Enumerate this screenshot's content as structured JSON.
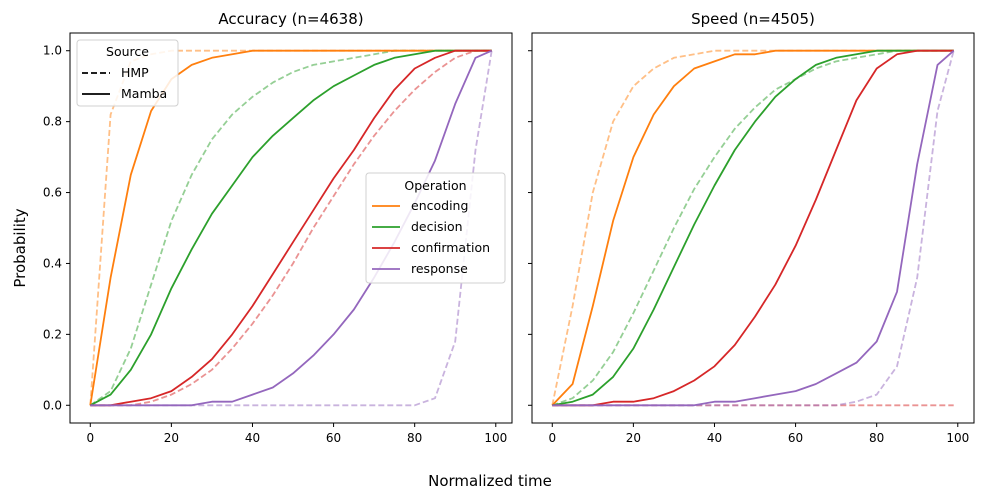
{
  "figure": {
    "xlabel": "Normalized time",
    "ylabel": "Probability"
  },
  "legends": {
    "source": {
      "title": "Source",
      "entries": [
        {
          "label": "HMP",
          "style": "dashed"
        },
        {
          "label": "Mamba",
          "style": "solid"
        }
      ]
    },
    "operation": {
      "title": "Operation",
      "entries": [
        {
          "label": "encoding",
          "color": "#ff7f0e"
        },
        {
          "label": "decision",
          "color": "#2ca02c"
        },
        {
          "label": "confirmation",
          "color": "#d62728"
        },
        {
          "label": "response",
          "color": "#9467bd"
        }
      ]
    }
  },
  "chart_data": [
    {
      "type": "line",
      "title": "Accuracy (n=4638)",
      "xlim": [
        -5,
        104
      ],
      "ylim": [
        -0.05,
        1.05
      ],
      "xticks": [
        0,
        20,
        40,
        60,
        80,
        100
      ],
      "yticks": [
        0.0,
        0.2,
        0.4,
        0.6,
        0.8,
        1.0
      ],
      "x": [
        0,
        5,
        10,
        15,
        20,
        25,
        30,
        35,
        40,
        45,
        50,
        55,
        60,
        65,
        70,
        75,
        80,
        85,
        90,
        95,
        99
      ],
      "series": [
        {
          "name": "encoding",
          "source": "Mamba",
          "color": "#ff7f0e",
          "y": [
            0,
            0.36,
            0.65,
            0.83,
            0.92,
            0.96,
            0.98,
            0.99,
            1.0,
            1.0,
            1.0,
            1.0,
            1.0,
            1.0,
            1.0,
            1.0,
            1.0,
            1.0,
            1.0,
            1.0,
            1.0
          ]
        },
        {
          "name": "decision",
          "source": "Mamba",
          "color": "#2ca02c",
          "y": [
            0,
            0.03,
            0.1,
            0.2,
            0.33,
            0.44,
            0.54,
            0.62,
            0.7,
            0.76,
            0.81,
            0.86,
            0.9,
            0.93,
            0.96,
            0.98,
            0.99,
            1.0,
            1.0,
            1.0,
            1.0
          ]
        },
        {
          "name": "confirmation",
          "source": "Mamba",
          "color": "#d62728",
          "y": [
            0,
            0.0,
            0.01,
            0.02,
            0.04,
            0.08,
            0.13,
            0.2,
            0.28,
            0.37,
            0.46,
            0.55,
            0.64,
            0.72,
            0.81,
            0.89,
            0.95,
            0.98,
            1.0,
            1.0,
            1.0
          ]
        },
        {
          "name": "response",
          "source": "Mamba",
          "color": "#9467bd",
          "y": [
            0,
            0.0,
            0.0,
            0.0,
            0.0,
            0.0,
            0.01,
            0.01,
            0.03,
            0.05,
            0.09,
            0.14,
            0.2,
            0.27,
            0.36,
            0.46,
            0.57,
            0.69,
            0.85,
            0.98,
            1.0
          ]
        },
        {
          "name": "encoding",
          "source": "HMP",
          "color": "#ff7f0e",
          "y": [
            0,
            0.82,
            0.97,
            0.99,
            1.0,
            1.0,
            1.0,
            1.0,
            1.0,
            1.0,
            1.0,
            1.0,
            1.0,
            1.0,
            1.0,
            1.0,
            1.0,
            1.0,
            1.0,
            1.0,
            1.0
          ]
        },
        {
          "name": "decision",
          "source": "HMP",
          "color": "#2ca02c",
          "y": [
            0,
            0.04,
            0.16,
            0.34,
            0.52,
            0.65,
            0.75,
            0.82,
            0.87,
            0.91,
            0.94,
            0.96,
            0.97,
            0.98,
            0.99,
            1.0,
            1.0,
            1.0,
            1.0,
            1.0,
            1.0
          ]
        },
        {
          "name": "confirmation",
          "source": "HMP",
          "color": "#d62728",
          "y": [
            0,
            0.0,
            0.0,
            0.01,
            0.03,
            0.06,
            0.1,
            0.16,
            0.23,
            0.31,
            0.4,
            0.5,
            0.59,
            0.68,
            0.76,
            0.83,
            0.89,
            0.94,
            0.98,
            1.0,
            1.0
          ]
        },
        {
          "name": "response",
          "source": "HMP",
          "color": "#9467bd",
          "y": [
            0,
            0.0,
            0.0,
            0.0,
            0.0,
            0.0,
            0.0,
            0.0,
            0.0,
            0.0,
            0.0,
            0.0,
            0.0,
            0.0,
            0.0,
            0.0,
            0.0,
            0.02,
            0.18,
            0.72,
            1.0
          ]
        }
      ]
    },
    {
      "type": "line",
      "title": "Speed (n=4505)",
      "xlim": [
        -5,
        104
      ],
      "ylim": [
        -0.05,
        1.05
      ],
      "xticks": [
        0,
        20,
        40,
        60,
        80,
        100
      ],
      "yticks": [
        0.0,
        0.2,
        0.4,
        0.6,
        0.8,
        1.0
      ],
      "x": [
        0,
        5,
        10,
        15,
        20,
        25,
        30,
        35,
        40,
        45,
        50,
        55,
        60,
        65,
        70,
        75,
        80,
        85,
        90,
        95,
        99
      ],
      "series": [
        {
          "name": "encoding",
          "source": "Mamba",
          "color": "#ff7f0e",
          "y": [
            0,
            0.06,
            0.28,
            0.52,
            0.7,
            0.82,
            0.9,
            0.95,
            0.97,
            0.99,
            0.99,
            1.0,
            1.0,
            1.0,
            1.0,
            1.0,
            1.0,
            1.0,
            1.0,
            1.0,
            1.0
          ]
        },
        {
          "name": "decision",
          "source": "Mamba",
          "color": "#2ca02c",
          "y": [
            0,
            0.01,
            0.03,
            0.08,
            0.16,
            0.27,
            0.39,
            0.51,
            0.62,
            0.72,
            0.8,
            0.87,
            0.92,
            0.96,
            0.98,
            0.99,
            1.0,
            1.0,
            1.0,
            1.0,
            1.0
          ]
        },
        {
          "name": "confirmation",
          "source": "Mamba",
          "color": "#d62728",
          "y": [
            0,
            0.0,
            0.0,
            0.01,
            0.01,
            0.02,
            0.04,
            0.07,
            0.11,
            0.17,
            0.25,
            0.34,
            0.45,
            0.58,
            0.72,
            0.86,
            0.95,
            0.99,
            1.0,
            1.0,
            1.0
          ]
        },
        {
          "name": "response",
          "source": "Mamba",
          "color": "#9467bd",
          "y": [
            0,
            0.0,
            0.0,
            0.0,
            0.0,
            0.0,
            0.0,
            0.0,
            0.01,
            0.01,
            0.02,
            0.03,
            0.04,
            0.06,
            0.09,
            0.12,
            0.18,
            0.32,
            0.68,
            0.96,
            1.0
          ]
        },
        {
          "name": "encoding",
          "source": "HMP",
          "color": "#ff7f0e",
          "y": [
            0,
            0.28,
            0.6,
            0.8,
            0.9,
            0.95,
            0.98,
            0.99,
            1.0,
            1.0,
            1.0,
            1.0,
            1.0,
            1.0,
            1.0,
            1.0,
            1.0,
            1.0,
            1.0,
            1.0,
            1.0
          ]
        },
        {
          "name": "decision",
          "source": "HMP",
          "color": "#2ca02c",
          "y": [
            0,
            0.02,
            0.07,
            0.15,
            0.26,
            0.38,
            0.5,
            0.61,
            0.7,
            0.78,
            0.84,
            0.89,
            0.92,
            0.95,
            0.97,
            0.98,
            0.99,
            1.0,
            1.0,
            1.0,
            1.0
          ]
        },
        {
          "name": "confirmation",
          "source": "HMP",
          "color": "#d62728",
          "y": [
            0,
            0.0,
            0.0,
            0.0,
            0.0,
            0.0,
            0.0,
            0.0,
            0.0,
            0.0,
            0.0,
            0.0,
            0.0,
            0.0,
            0.0,
            0.0,
            0.0,
            0.0,
            0.0,
            0.0,
            0.0
          ]
        },
        {
          "name": "response",
          "source": "HMP",
          "color": "#9467bd",
          "y": [
            0,
            0.0,
            0.0,
            0.0,
            0.0,
            0.0,
            0.0,
            0.0,
            0.0,
            0.0,
            0.0,
            0.0,
            0.0,
            0.0,
            0.0,
            0.01,
            0.03,
            0.11,
            0.36,
            0.83,
            1.0
          ]
        }
      ]
    }
  ]
}
